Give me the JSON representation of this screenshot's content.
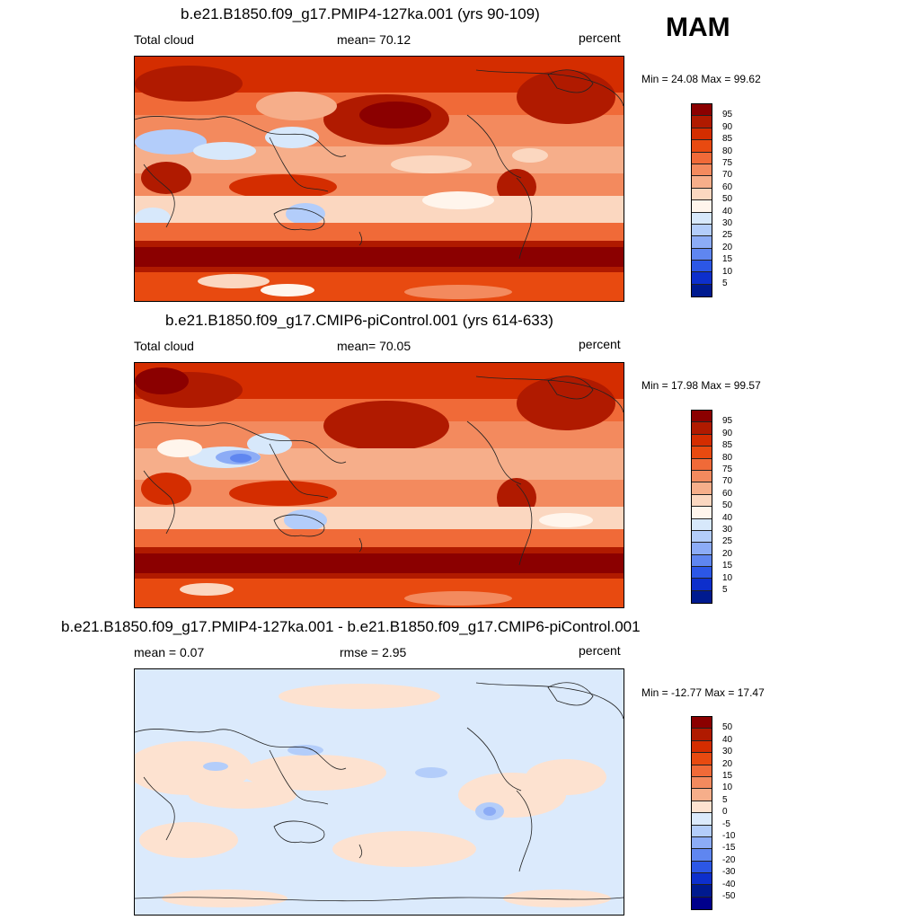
{
  "season": "MAM",
  "panels": [
    {
      "title": "b.e21.B1850.f09_g17.PMIP4-127ka.001 (yrs 90-109)",
      "left_label": "Total cloud",
      "mid_label": "mean=  70.12",
      "units": "percent",
      "minmax": "Min =  24.08 Max =  99.62",
      "colorbar_labels": [
        "95",
        "90",
        "85",
        "80",
        "75",
        "70",
        "60",
        "50",
        "40",
        "30",
        "25",
        "20",
        "15",
        "10",
        "5"
      ],
      "palette": [
        "#8b0000",
        "#b01a00",
        "#d42d00",
        "#e84a10",
        "#f06a38",
        "#f38a5e",
        "#f6ae8a",
        "#fbd7c0",
        "#fff5ec",
        "#d7e8fb",
        "#b3cdfa",
        "#8cacf6",
        "#5f86f0",
        "#2c57e6",
        "#0d2fcc",
        "#001a8f"
      ]
    },
    {
      "title": "b.e21.B1850.f09_g17.CMIP6-piControl.001 (yrs 614-633)",
      "left_label": "Total cloud",
      "mid_label": "mean=  70.05",
      "units": "percent",
      "minmax": "Min =  17.98 Max =  99.57",
      "colorbar_labels": [
        "95",
        "90",
        "85",
        "80",
        "75",
        "70",
        "60",
        "50",
        "40",
        "30",
        "25",
        "20",
        "15",
        "10",
        "5"
      ],
      "palette": [
        "#8b0000",
        "#b01a00",
        "#d42d00",
        "#e84a10",
        "#f06a38",
        "#f38a5e",
        "#f6ae8a",
        "#fbd7c0",
        "#fff5ec",
        "#d7e8fb",
        "#b3cdfa",
        "#8cacf6",
        "#5f86f0",
        "#2c57e6",
        "#0d2fcc",
        "#001a8f"
      ]
    },
    {
      "title": "b.e21.B1850.f09_g17.PMIP4-127ka.001 - b.e21.B1850.f09_g17.CMIP6-piControl.001",
      "left_label": "mean =   0.07",
      "mid_label": "rmse =   2.95",
      "units": "percent",
      "minmax": "Min = -12.77 Max =  17.47",
      "colorbar_labels": [
        "50",
        "40",
        "30",
        "20",
        "15",
        "10",
        "5",
        "0",
        "-5",
        "-10",
        "-15",
        "-20",
        "-30",
        "-40",
        "-50"
      ],
      "palette": [
        "#8b0000",
        "#b01a00",
        "#d42d00",
        "#e84a10",
        "#f06a38",
        "#f38a5e",
        "#f6ae8a",
        "#fde2d0",
        "#dbeafc",
        "#b3cdfa",
        "#8cacf6",
        "#5f86f0",
        "#2c57e6",
        "#0d2fcc",
        "#001a8f",
        "#00008b"
      ]
    }
  ]
}
